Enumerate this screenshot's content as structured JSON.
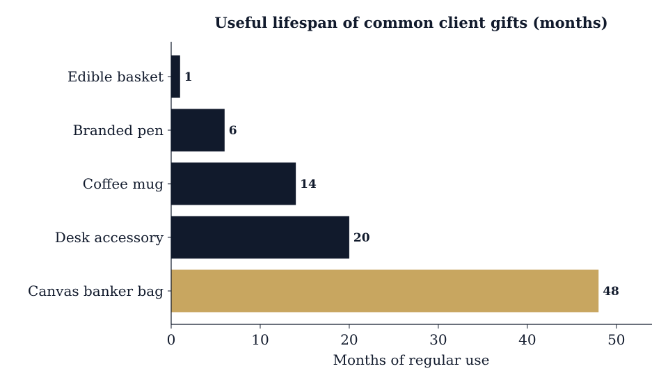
{
  "chart_data": {
    "type": "bar",
    "orientation": "horizontal",
    "title": "Useful lifespan of common client gifts (months)",
    "xlabel": "Months of regular use",
    "ylabel": "",
    "categories": [
      "Edible basket",
      "Branded pen",
      "Coffee mug",
      "Desk accessory",
      "Canvas banker bag"
    ],
    "values": [
      1,
      6,
      14,
      20,
      48
    ],
    "value_labels": [
      "1",
      "6",
      "14",
      "20",
      "48"
    ],
    "xlim": [
      0,
      54
    ],
    "xticks": [
      0,
      10,
      20,
      30,
      40,
      50
    ],
    "xtick_labels": [
      "0",
      "10",
      "20",
      "30",
      "40",
      "50"
    ],
    "grid": false,
    "highlight_category": "Canvas banker bag",
    "colors": {
      "bar": "#111a2c",
      "highlight": "#c8a660",
      "text": "#111a2c",
      "axis": "#111a2c"
    }
  }
}
